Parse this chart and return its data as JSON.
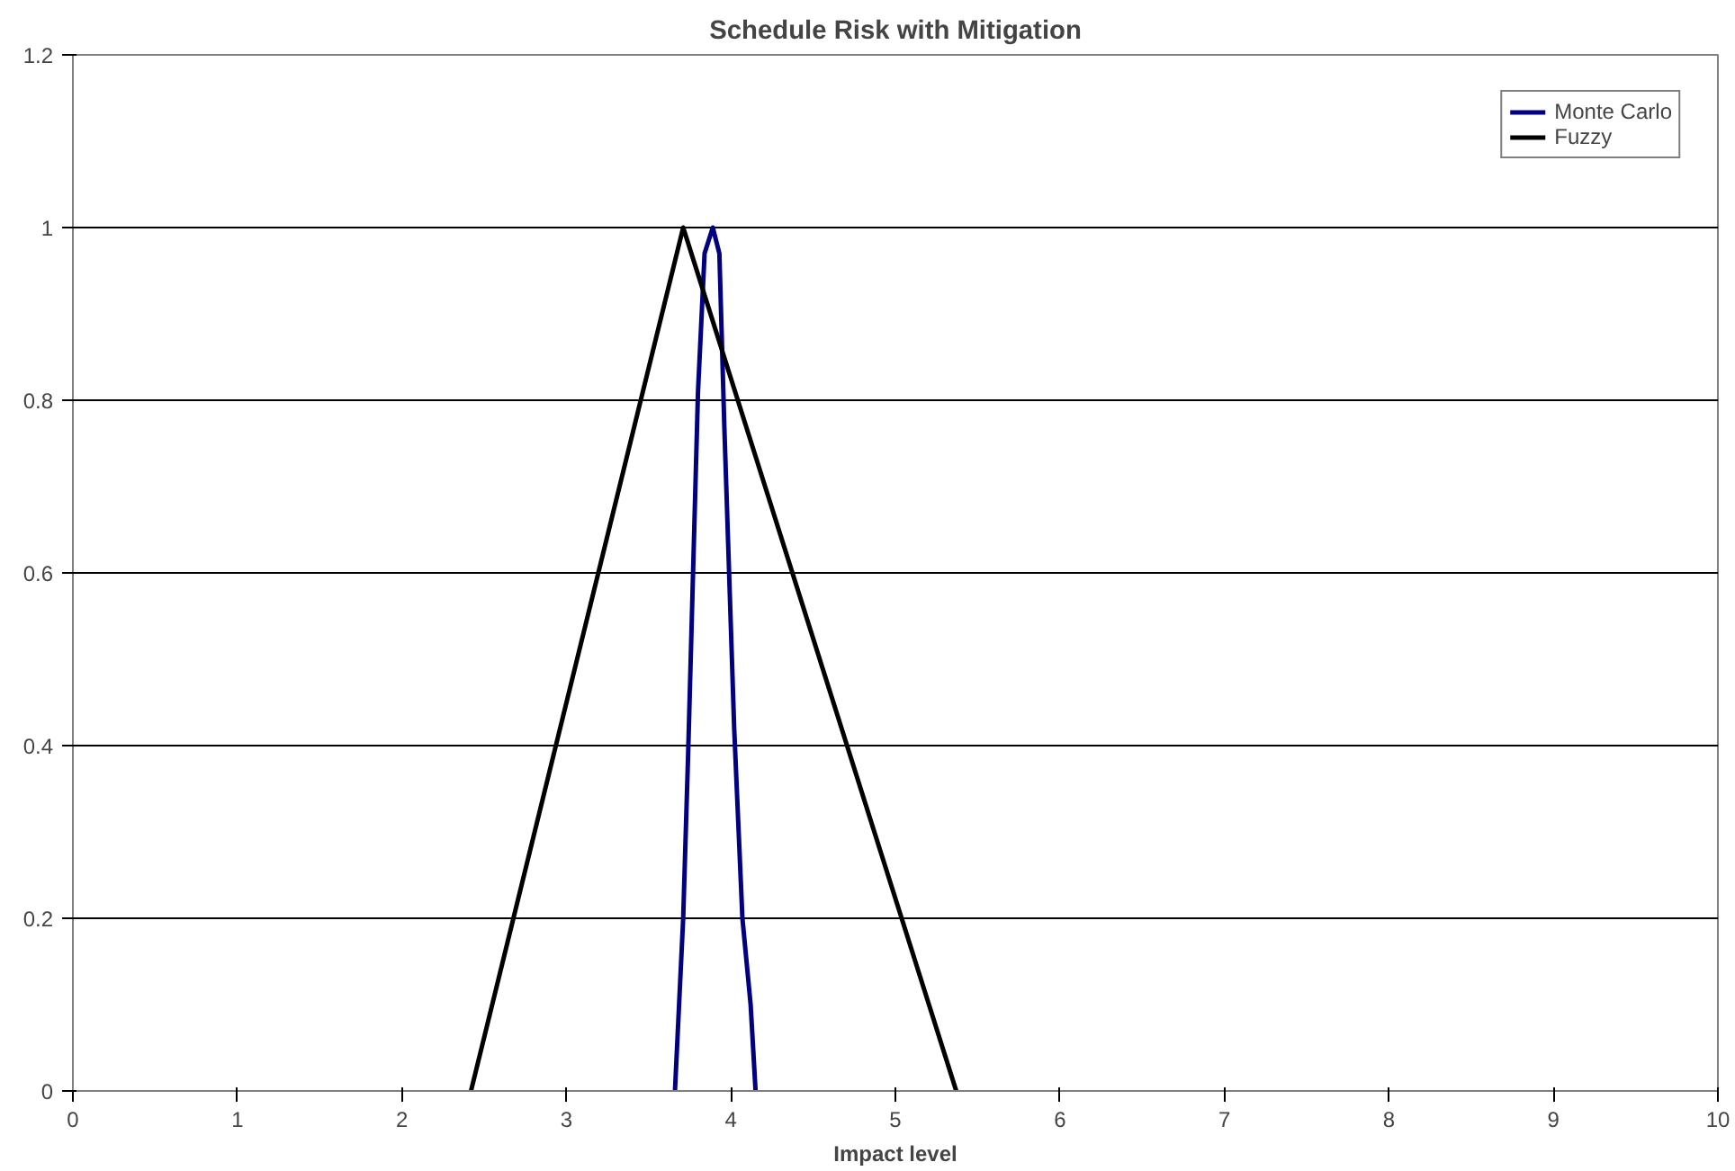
{
  "chart_data": {
    "type": "line",
    "title": "Schedule Risk with Mitigation",
    "xlabel": "Impact level",
    "xlim": [
      0,
      10
    ],
    "xticks": [
      0,
      1,
      2,
      3,
      4,
      5,
      6,
      7,
      8,
      9,
      10
    ],
    "ylim": [
      0,
      1.2
    ],
    "yticks": [
      0,
      0.2,
      0.4,
      0.6,
      0.8,
      1,
      1.2
    ],
    "grid": "y",
    "legend": "top right",
    "marker": "none",
    "line_style": "solid",
    "series": [
      {
        "name": "Monte Carlo",
        "color": "#000080",
        "x": [
          3.66,
          3.71,
          3.74,
          3.8,
          3.84,
          3.89,
          3.93,
          3.96,
          4.02,
          4.07,
          4.12,
          4.15
        ],
        "values": [
          0,
          0.2,
          0.39,
          0.81,
          0.97,
          1,
          0.97,
          0.77,
          0.42,
          0.2,
          0.1,
          0
        ]
      },
      {
        "name": "Fuzzy",
        "color": "#000000",
        "x": [
          2.42,
          3.71,
          5.37
        ],
        "values": [
          0,
          1,
          0
        ]
      }
    ]
  }
}
